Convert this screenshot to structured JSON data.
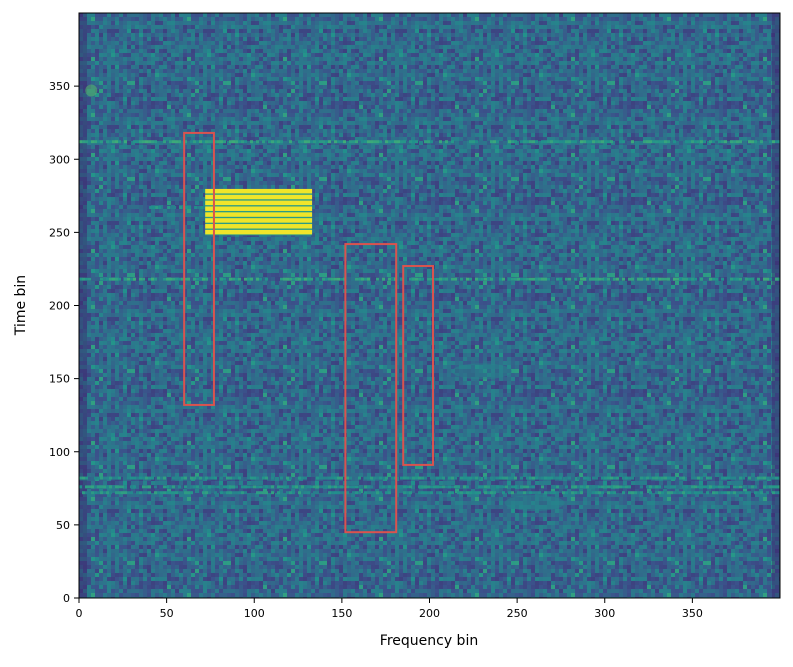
{
  "chart_data": {
    "type": "heatmap",
    "title": "",
    "xlabel": "Frequency bin",
    "ylabel": "Time bin",
    "xlim": [
      0,
      400
    ],
    "ylim": [
      0,
      400
    ],
    "x_ticks": [
      0,
      50,
      100,
      150,
      200,
      250,
      300,
      350
    ],
    "y_ticks": [
      0,
      50,
      100,
      150,
      200,
      250,
      300,
      350
    ],
    "colormap": "viridis",
    "grid": false,
    "background_level_range": [
      0.2,
      0.45
    ],
    "horizontal_lines": [
      {
        "y": 312,
        "x_range": [
          0,
          400
        ],
        "intensity": 0.55
      },
      {
        "y": 218,
        "x_range": [
          0,
          400
        ],
        "intensity": 0.55
      },
      {
        "y": 82,
        "x_range": [
          0,
          400
        ],
        "intensity": 0.5
      },
      {
        "y": 76,
        "x_range": [
          0,
          400
        ],
        "intensity": 0.5
      },
      {
        "y": 72,
        "x_range": [
          0,
          400
        ],
        "intensity": 0.5
      },
      {
        "y": 267,
        "x_range": [
          40,
          70
        ],
        "intensity": 0.5
      }
    ],
    "bright_block": {
      "x_range": [
        72,
        133
      ],
      "y_range": [
        248,
        279
      ],
      "stripe_rows": [
        250,
        254,
        258,
        262,
        266,
        270,
        274,
        278
      ],
      "intensity": 0.98
    },
    "hotspots": [
      {
        "x": 7,
        "y": 347,
        "intensity": 0.7
      },
      {
        "x": 230,
        "y": 155,
        "intensity": 0.45
      },
      {
        "x": 260,
        "y": 65,
        "intensity": 0.45
      }
    ],
    "boxes": [
      {
        "x_range": [
          60,
          77
        ],
        "y_range": [
          132,
          318
        ],
        "color": "#d9534f"
      },
      {
        "x_range": [
          152,
          181
        ],
        "y_range": [
          45,
          242
        ],
        "color": "#d9534f"
      },
      {
        "x_range": [
          185,
          202
        ],
        "y_range": [
          91,
          227
        ],
        "color": "#d9534f"
      }
    ]
  }
}
